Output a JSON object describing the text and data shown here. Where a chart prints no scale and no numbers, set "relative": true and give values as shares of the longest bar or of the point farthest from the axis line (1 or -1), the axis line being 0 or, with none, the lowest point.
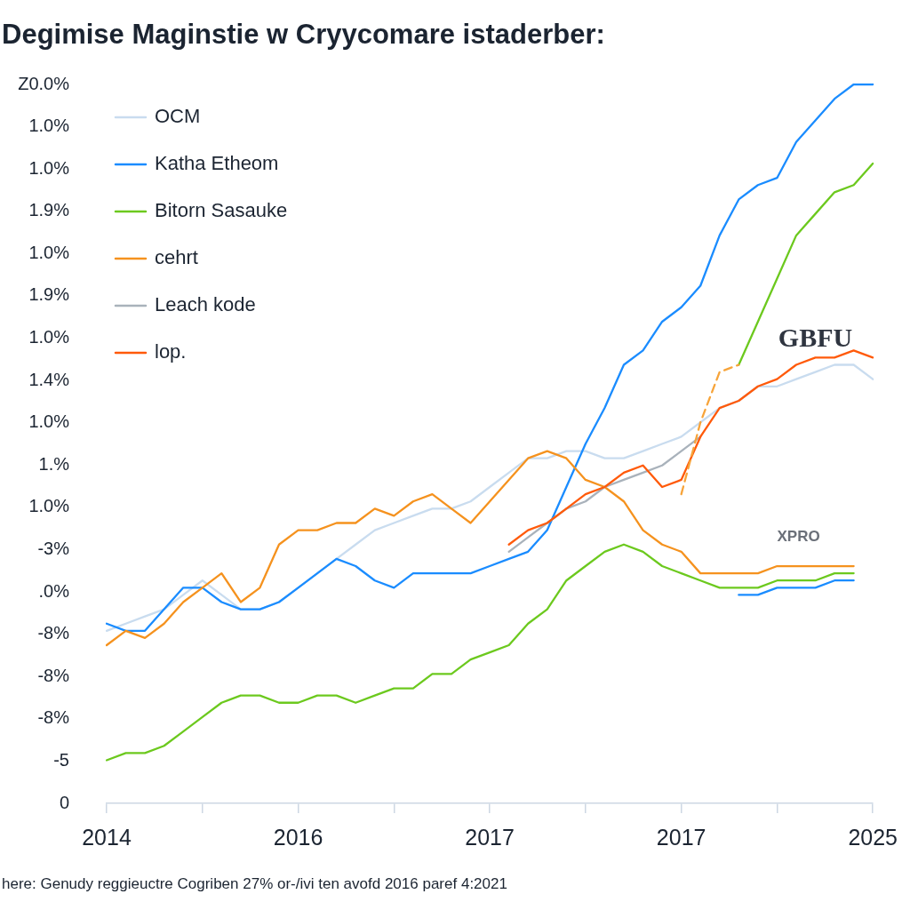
{
  "chart_data": {
    "type": "line",
    "title": "Degimise Maginstie w Cryycomare istaderber:",
    "relative": true,
    "categories": [
      "2014",
      null,
      null,
      null,
      null,
      null,
      null,
      null,
      null,
      null,
      "2016",
      null,
      null,
      null,
      null,
      null,
      null,
      null,
      null,
      null,
      "2017",
      null,
      null,
      null,
      null,
      null,
      null,
      null,
      null,
      null,
      "2017",
      null,
      null,
      null,
      null,
      null,
      null,
      null,
      null,
      null,
      "2025"
    ],
    "legend": "top left",
    "series": [
      {
        "name": "OCM",
        "color": "#c9dcef",
        "values": [
          0.24,
          0.25,
          0.26,
          0.27,
          0.29,
          0.31,
          0.29,
          0.27,
          0.27,
          0.28,
          0.3,
          0.32,
          0.34,
          0.36,
          0.38,
          0.39,
          0.4,
          0.41,
          0.41,
          0.42,
          0.44,
          0.46,
          0.48,
          0.48,
          0.49,
          0.49,
          0.48,
          0.48,
          0.49,
          0.5,
          0.51,
          0.53,
          0.55,
          0.56,
          0.58,
          0.58,
          0.59,
          0.6,
          0.61,
          0.61,
          0.59
        ]
      },
      {
        "name": "Katha Etheom",
        "color": "#1a8cff",
        "values": [
          0.25,
          0.24,
          0.24,
          0.27,
          0.3,
          0.3,
          0.28,
          0.27,
          0.27,
          0.28,
          0.3,
          0.32,
          0.34,
          0.33,
          0.31,
          0.3,
          0.32,
          0.32,
          0.32,
          0.32,
          0.33,
          0.34,
          0.35,
          0.38,
          0.44,
          0.5,
          0.55,
          0.61,
          0.63,
          0.67,
          0.69,
          0.72,
          0.79,
          0.84,
          0.86,
          0.87,
          0.92,
          0.95,
          0.98,
          1.0,
          1.0
        ]
      },
      {
        "name": "Bitorn Sasauke",
        "color": "#6cc91e",
        "values": [
          0.06,
          0.07,
          0.07,
          0.08,
          0.1,
          0.12,
          0.14,
          0.15,
          0.15,
          0.14,
          0.14,
          0.15,
          0.15,
          0.14,
          0.15,
          0.16,
          0.16,
          0.18,
          0.18,
          0.2,
          0.21,
          0.22,
          0.25,
          0.27,
          0.31,
          0.33,
          0.35,
          0.36,
          0.35,
          0.33,
          0.32,
          0.31,
          0.3,
          0.3,
          0.3,
          0.31,
          0.31,
          0.31,
          0.32,
          0.32,
          null
        ]
      },
      {
        "name": "cehrt",
        "color": "#f5921e",
        "values": [
          0.22,
          0.24,
          0.23,
          0.25,
          0.28,
          0.3,
          0.32,
          0.28,
          0.3,
          0.36,
          0.38,
          0.38,
          0.39,
          0.39,
          0.41,
          0.4,
          0.42,
          0.43,
          0.41,
          0.39,
          0.42,
          0.45,
          0.48,
          0.49,
          0.48,
          0.45,
          0.44,
          0.42,
          0.38,
          0.36,
          0.35,
          0.32,
          0.32,
          0.32,
          0.32,
          0.33,
          0.33,
          0.33,
          0.33,
          0.33,
          null
        ]
      },
      {
        "name": "Leach kode",
        "color": "#a9b2bb",
        "values": [
          null,
          null,
          null,
          null,
          null,
          null,
          null,
          null,
          null,
          null,
          null,
          null,
          null,
          null,
          null,
          null,
          null,
          null,
          null,
          null,
          null,
          0.35,
          0.37,
          0.39,
          0.41,
          0.42,
          0.44,
          0.45,
          0.46,
          0.47,
          0.49,
          0.51,
          null,
          null,
          null,
          null,
          null,
          null,
          null,
          null,
          null
        ]
      },
      {
        "name": "lop.",
        "color": "#ff5a0a",
        "values": [
          null,
          null,
          null,
          null,
          null,
          null,
          null,
          null,
          null,
          null,
          null,
          null,
          null,
          null,
          null,
          null,
          null,
          null,
          null,
          null,
          null,
          0.36,
          0.38,
          0.39,
          0.41,
          0.43,
          0.44,
          0.46,
          0.47,
          0.44,
          0.45,
          0.51,
          0.55,
          0.56,
          0.58,
          0.59,
          0.61,
          0.62,
          0.62,
          0.63,
          0.62
        ]
      },
      {
        "color": "#6cc91e",
        "values": [
          null,
          null,
          null,
          null,
          null,
          null,
          null,
          null,
          null,
          null,
          null,
          null,
          null,
          null,
          null,
          null,
          null,
          null,
          null,
          null,
          null,
          null,
          null,
          null,
          null,
          null,
          null,
          null,
          null,
          null,
          null,
          null,
          null,
          0.61,
          0.67,
          0.73,
          0.79,
          0.82,
          0.85,
          0.86,
          0.89
        ]
      },
      {
        "color": "#f7a43a",
        "line_style": "dashed",
        "values": [
          null,
          null,
          null,
          null,
          null,
          null,
          null,
          null,
          null,
          null,
          null,
          null,
          null,
          null,
          null,
          null,
          null,
          null,
          null,
          null,
          null,
          null,
          null,
          null,
          null,
          null,
          null,
          null,
          null,
          null,
          0.43,
          0.53,
          0.6,
          0.61,
          null,
          null,
          null,
          null,
          null,
          null,
          null
        ]
      },
      {
        "color": "#1a8cff",
        "values": [
          null,
          null,
          null,
          null,
          null,
          null,
          null,
          null,
          null,
          null,
          null,
          null,
          null,
          null,
          null,
          null,
          null,
          null,
          null,
          null,
          null,
          null,
          null,
          null,
          null,
          null,
          null,
          null,
          null,
          null,
          null,
          null,
          null,
          0.29,
          0.29,
          0.3,
          0.3,
          0.3,
          0.31,
          0.31,
          null
        ]
      }
    ],
    "annotations": [
      "Z0.0%",
      "1.0%",
      "1.0%",
      "1.9%",
      "1.0%",
      "1.9%",
      "1.0%",
      "1.4%",
      "1.0%",
      "1.%",
      "1.0%",
      "-3%",
      ".0%",
      "-8%",
      "-8%",
      "-8%",
      "-5",
      "0",
      "GBFU",
      "XPRO",
      "here: Genudy reggieuctre Cogriben 27% or-/ivi ten avofd 2016 paref 4:2021"
    ]
  }
}
